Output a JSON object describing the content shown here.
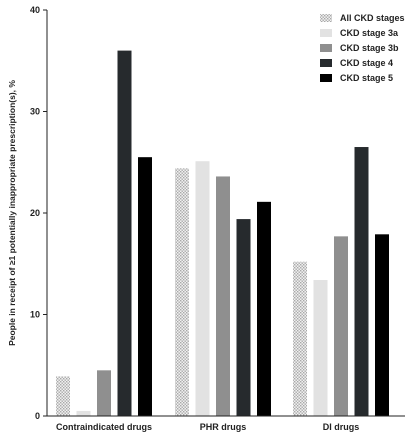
{
  "chart_data": {
    "type": "bar",
    "ylabel": "People in receipt of ≥1 potentially inappropriate prescription(s), %",
    "xlabel": "",
    "ylim": [
      0,
      40
    ],
    "yticks": [
      "0",
      "10",
      "20",
      "30",
      "40"
    ],
    "categories": [
      "Contraindicated drugs",
      "PHR drugs",
      "DI drugs"
    ],
    "legend_position": "top-right",
    "grid": false,
    "series": [
      {
        "name": "All CKD stages",
        "color": "#d9d9d9",
        "pattern": "dotted",
        "values": [
          3.9,
          24.4,
          15.2
        ]
      },
      {
        "name": "CKD stage 3a",
        "color": "#e2e2e2",
        "pattern": "solid",
        "values": [
          0.5,
          25.1,
          13.4
        ]
      },
      {
        "name": "CKD stage 3b",
        "color": "#8f8f8f",
        "pattern": "solid",
        "values": [
          4.5,
          23.6,
          17.7
        ]
      },
      {
        "name": "CKD stage 4",
        "color": "#262a2d",
        "pattern": "solid",
        "values": [
          36.0,
          19.4,
          26.5
        ]
      },
      {
        "name": "CKD stage 5",
        "color": "#000000",
        "pattern": "solid",
        "values": [
          25.5,
          21.1,
          17.9
        ]
      }
    ]
  }
}
